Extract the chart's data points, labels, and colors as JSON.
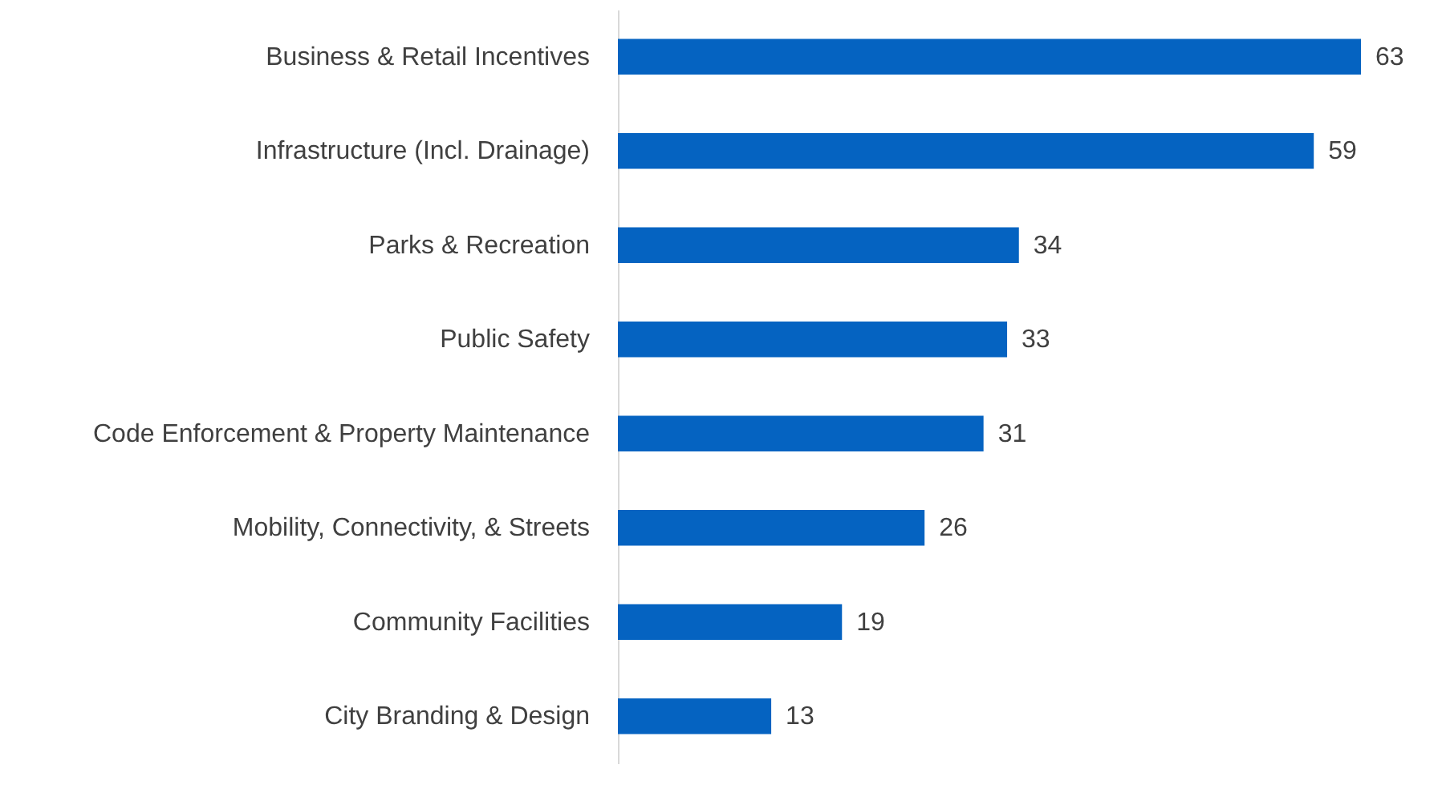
{
  "chart_data": {
    "type": "bar",
    "orientation": "horizontal",
    "tick_labels": "y",
    "data_labels": true,
    "color": "#0563c1",
    "categories": [
      "Business & Retail Incentives",
      "Infrastructure (Incl. Drainage)",
      "Parks & Recreation",
      "Public Safety ",
      "Code Enforcement & Property Maintenance",
      "Mobility, Connectivity, & Streets",
      "Community Facilities",
      "City Branding & Design"
    ],
    "values": [
      63,
      59,
      34,
      33,
      31,
      26,
      19,
      13
    ]
  }
}
